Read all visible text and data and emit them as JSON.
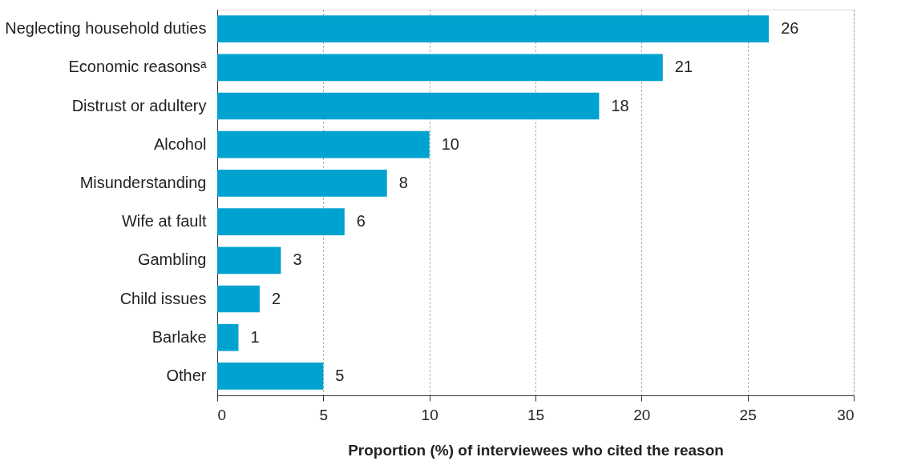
{
  "chart_data": {
    "type": "bar",
    "orientation": "horizontal",
    "categories": [
      "Neglecting household duties",
      "Economic reasonsᵃ",
      "Distrust or adultery",
      "Alcohol",
      "Misunderstanding",
      "Wife at fault",
      "Gambling",
      "Child issues",
      "Barlake",
      "Other"
    ],
    "values": [
      26,
      21,
      18,
      10,
      8,
      6,
      3,
      2,
      1,
      5
    ],
    "color": "#00a3cf",
    "xlabel": "Proportion (%) of interviewees who cited the reason",
    "xlim": [
      0,
      30
    ],
    "xticks": [
      0,
      5,
      10,
      15,
      20,
      25,
      30
    ],
    "grid": "x",
    "data_labels": true
  }
}
